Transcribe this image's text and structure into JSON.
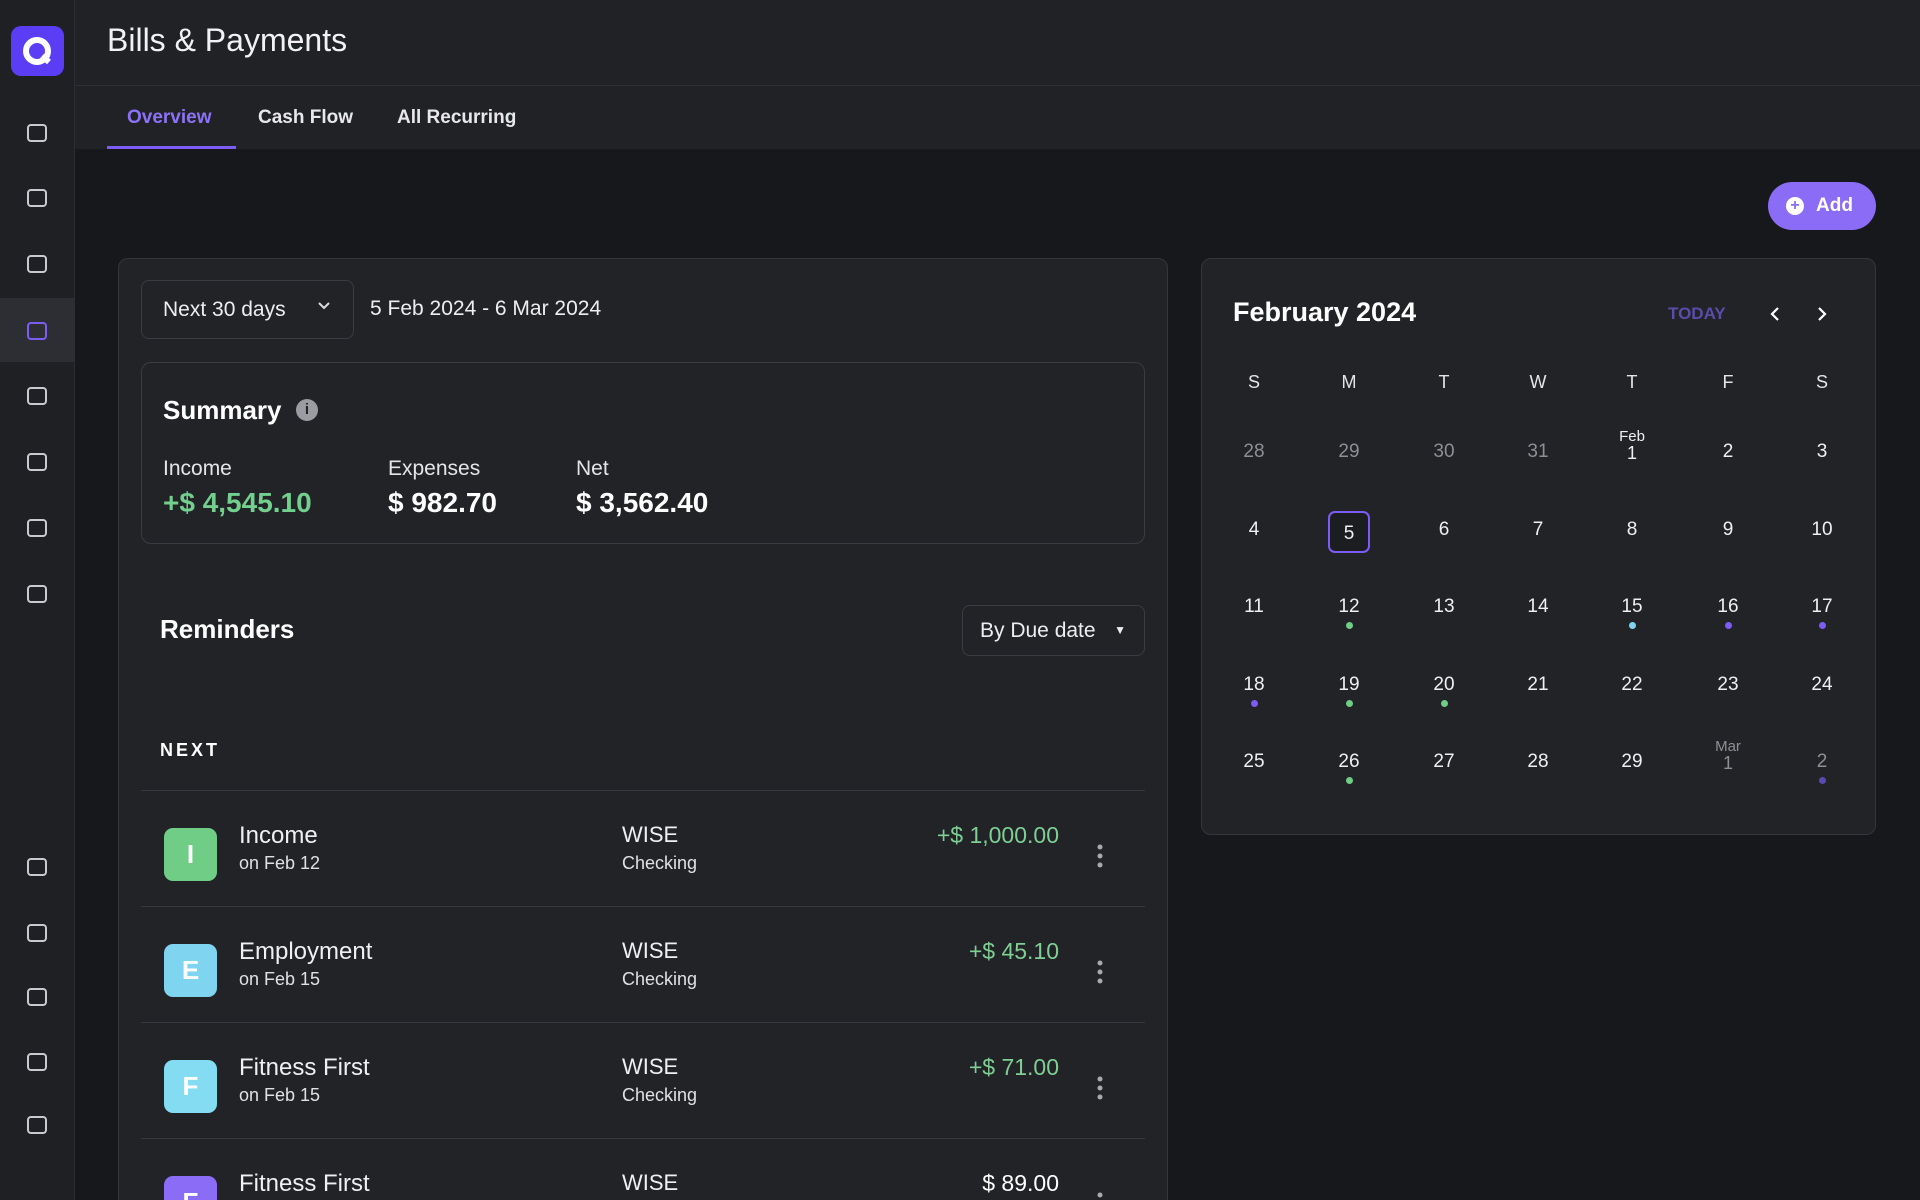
{
  "header": {
    "title": "Bills & Payments"
  },
  "tabs": [
    {
      "label": "Overview",
      "active": true
    },
    {
      "label": "Cash Flow"
    },
    {
      "label": "All Recurring"
    }
  ],
  "add_button": "Add",
  "filter": {
    "range": "Next 30 days",
    "dates": "5 Feb 2024 - 6 Mar 2024"
  },
  "summary": {
    "title": "Summary",
    "items": [
      {
        "label": "Income",
        "value": "+$ 4,545.10",
        "color": "#72cf8e"
      },
      {
        "label": "Expenses",
        "value": "$ 982.70",
        "color": "#ffffff"
      },
      {
        "label": "Net",
        "value": "$ 3,562.40",
        "color": "#ffffff"
      }
    ]
  },
  "reminders": {
    "title": "Reminders",
    "sort": "By Due date",
    "section": "NEXT",
    "rows": [
      {
        "initial": "I",
        "color": "#6fcd86",
        "name": "Income",
        "date": "on Feb 12",
        "account": "WISE",
        "account_type": "Checking",
        "amount": "+$ 1,000.00",
        "amount_color": "#7fcf95"
      },
      {
        "initial": "E",
        "color": "#7fd5ef",
        "name": "Employment",
        "date": "on Feb 15",
        "account": "WISE",
        "account_type": "Checking",
        "amount": "+$ 45.10",
        "amount_color": "#7fcf95"
      },
      {
        "initial": "F",
        "color": "#84dcf3",
        "name": "Fitness First",
        "date": "on Feb 15",
        "account": "WISE",
        "account_type": "Checking",
        "amount": "+$ 71.00",
        "amount_color": "#7fcf95"
      },
      {
        "initial": "F",
        "color": "#8a6cf6",
        "name": "Fitness First",
        "account": "WISE",
        "amount": "$ 89.00",
        "amount_color": "#ffffff"
      }
    ]
  },
  "calendar": {
    "title": "February 2024",
    "today": "TODAY",
    "weekdays": [
      "S",
      "M",
      "T",
      "W",
      "T",
      "F",
      "S"
    ],
    "weeks": [
      [
        {
          "day": "28",
          "muted": true
        },
        {
          "day": "29",
          "muted": true
        },
        {
          "day": "30",
          "muted": true
        },
        {
          "day": "31",
          "muted": true
        },
        {
          "month": "Feb",
          "day": "1"
        },
        {
          "day": "2"
        },
        {
          "day": "3"
        }
      ],
      [
        {
          "day": "4"
        },
        {
          "day": "5",
          "selected": true
        },
        {
          "day": "6"
        },
        {
          "day": "7"
        },
        {
          "day": "8"
        },
        {
          "day": "9"
        },
        {
          "day": "10"
        }
      ],
      [
        {
          "day": "11"
        },
        {
          "day": "12",
          "dot": "#6fcd86"
        },
        {
          "day": "13"
        },
        {
          "day": "14"
        },
        {
          "day": "15",
          "dot": "#7fd5ef"
        },
        {
          "day": "16",
          "dot": "#7c5cf5"
        },
        {
          "day": "17",
          "dot": "#7c5cf5"
        }
      ],
      [
        {
          "day": "18",
          "dot": "#7c5cf5"
        },
        {
          "day": "19",
          "dot": "#6fcd86"
        },
        {
          "day": "20",
          "dot": "#6fcd86"
        },
        {
          "day": "21"
        },
        {
          "day": "22"
        },
        {
          "day": "23"
        },
        {
          "day": "24"
        }
      ],
      [
        {
          "day": "25"
        },
        {
          "day": "26",
          "dot": "#6fcd86"
        },
        {
          "day": "27"
        },
        {
          "day": "28"
        },
        {
          "day": "29"
        },
        {
          "month": "Mar",
          "day": "1",
          "muted": true
        },
        {
          "day": "2",
          "muted": true,
          "dot": "#5b48b0"
        }
      ]
    ]
  }
}
